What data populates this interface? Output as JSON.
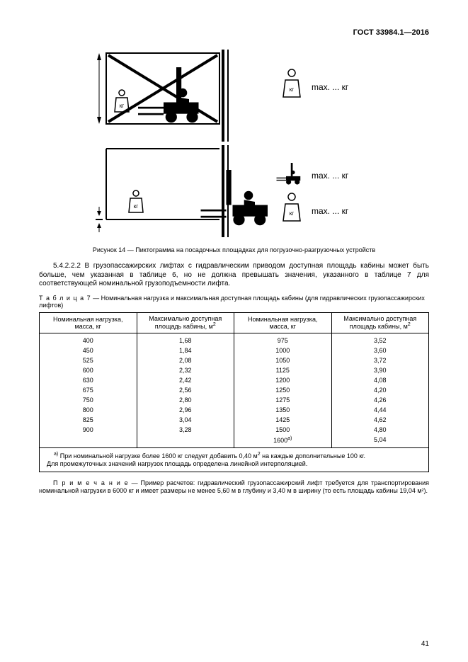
{
  "header": {
    "code": "ГОСТ 33984.1—2016"
  },
  "figure": {
    "caption": "Рисунок 14 — Пиктограмма на посадочных площадках для погрузочно-разгрузочных устройств",
    "weight_label": "кг",
    "max_label": "max. ... кг"
  },
  "para1": "5.4.2.2.2 В грузопассажирских лифтах с гидравлическим приводом доступная площадь кабины может быть больше, чем указанная в таблице 6, но не должна превышать значения, указанного в та­блице 7 для соответствующей номинальной грузоподъемности лифта.",
  "table": {
    "caption_prefix": "Т а б л и ц а  7",
    "caption_rest": " — Номинальная нагрузка и максимальная доступная площадь кабины (для гидравлических грузопас­сажирских лифтов)",
    "col1": "Номинальная нагрузка, масса, кг",
    "col2_a": "Максимально доступная ",
    "col2_b": "площадь кабины, м",
    "col3": "Номинальная нагрузка, масса, кг",
    "col4_a": "Максимально доступная ",
    "col4_b": "площадь кабины, м",
    "rows": [
      [
        "400",
        "1,68",
        "975",
        "3,52"
      ],
      [
        "450",
        "1,84",
        "1000",
        "3,60"
      ],
      [
        "525",
        "2,08",
        "1050",
        "3,72"
      ],
      [
        "600",
        "2,32",
        "1125",
        "3,90"
      ],
      [
        "630",
        "2,42",
        "1200",
        "4,08"
      ],
      [
        "675",
        "2,56",
        "1250",
        "4,20"
      ],
      [
        "750",
        "2,80",
        "1275",
        "4,26"
      ],
      [
        "800",
        "2,96",
        "1350",
        "4,44"
      ],
      [
        "825",
        "3,04",
        "1425",
        "4,62"
      ],
      [
        "900",
        "3,28",
        "1500",
        "4,80"
      ]
    ],
    "last_row": [
      "",
      "",
      "",
      "5,04"
    ],
    "last_row_c3_val": "1600",
    "last_row_c3_sup": "a)",
    "footnote_sup": "a)",
    "footnote_l1": " При номинальной нагрузке более 1600 кг следует добавить 0,40 м",
    "footnote_l1b": " на каждые дополнительные 100 кг.",
    "footnote_l2": "Для промежуточных значений нагрузок площадь определена линейной интерполяцией."
  },
  "note": {
    "prefix": "П р и м е ч а н и е",
    "text": " — Пример расчетов: гидравлический грузопассажирский лифт требуется для транспорти­рования номинальной нагрузки в 6000 кг и имеет размеры не менее 5,60 м в глубину и 3,40 м в ширину (то есть площадь кабины 19,04 м²)."
  },
  "page_num": "41"
}
